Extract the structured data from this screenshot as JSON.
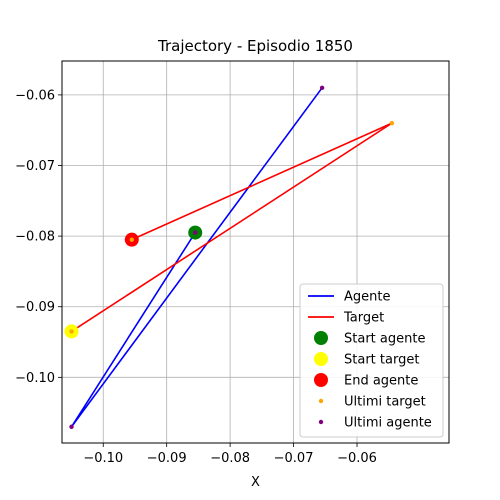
{
  "chart_data": {
    "type": "line",
    "title": "Trajectory - Episodio 1850",
    "xlabel": "X",
    "ylabel": "",
    "xlim": [
      -0.1065,
      -0.0455
    ],
    "ylim": [
      -0.1093,
      -0.0552
    ],
    "grid": true,
    "xticks": [
      -0.1,
      -0.09,
      -0.08,
      -0.07,
      -0.06
    ],
    "xtick_labels": [
      "−0.10",
      "−0.09",
      "−0.08",
      "−0.07",
      "−0.06"
    ],
    "yticks": [
      -0.1,
      -0.09,
      -0.08,
      -0.07,
      -0.06
    ],
    "ytick_labels": [
      "−0.10",
      "−0.09",
      "−0.08",
      "−0.07",
      "−0.06"
    ],
    "series": [
      {
        "name": "Agente",
        "kind": "line",
        "color": "#0000ff",
        "x": [
          -0.0855,
          -0.105,
          -0.0655
        ],
        "y": [
          -0.0795,
          -0.107,
          -0.059
        ]
      },
      {
        "name": "Target",
        "kind": "line",
        "color": "#ff0000",
        "x": [
          -0.0955,
          -0.0545,
          -0.105
        ],
        "y": [
          -0.0805,
          -0.064,
          -0.0935
        ]
      }
    ],
    "markers": [
      {
        "name": "Start agente",
        "color": "#008000",
        "size": "large",
        "x": -0.0855,
        "y": -0.0795
      },
      {
        "name": "Start target",
        "color": "#ffff00",
        "size": "large",
        "x": -0.105,
        "y": -0.0935
      },
      {
        "name": "End agente",
        "color": "#ff0000",
        "size": "large",
        "x": -0.0955,
        "y": -0.0805
      },
      {
        "name": "Ultimi target",
        "color": "#ffa500",
        "size": "small",
        "x": [
          -0.0955,
          -0.0545,
          -0.105
        ],
        "y": [
          -0.0805,
          -0.064,
          -0.0935
        ]
      },
      {
        "name": "Ultimi agente",
        "color": "#800080",
        "size": "small",
        "x": [
          -0.0855,
          -0.105,
          -0.0655
        ],
        "y": [
          -0.0795,
          -0.107,
          -0.059
        ]
      }
    ],
    "legend": {
      "placement": "lower-right",
      "entries": [
        {
          "label": "Agente",
          "kind": "line",
          "color": "#0000ff"
        },
        {
          "label": "Target",
          "kind": "line",
          "color": "#ff0000"
        },
        {
          "label": "Start agente",
          "kind": "marker",
          "color": "#008000",
          "size": "large"
        },
        {
          "label": "Start target",
          "kind": "marker",
          "color": "#ffff00",
          "size": "large"
        },
        {
          "label": "End agente",
          "kind": "marker",
          "color": "#ff0000",
          "size": "large"
        },
        {
          "label": "Ultimi target",
          "kind": "marker",
          "color": "#ffa500",
          "size": "small"
        },
        {
          "label": "Ultimi agente",
          "kind": "marker",
          "color": "#800080",
          "size": "small"
        }
      ]
    }
  }
}
